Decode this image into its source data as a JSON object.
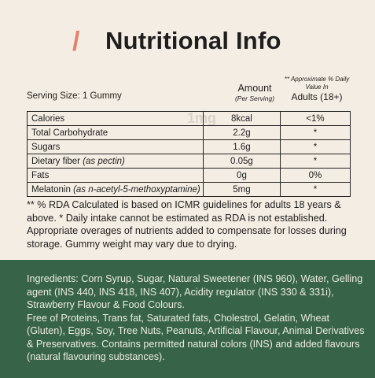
{
  "title": {
    "slash": "/",
    "text": "Nutritional Info"
  },
  "serving_size": "Serving Size: 1 Gummy",
  "header": {
    "amount_main": "Amount",
    "amount_sub": "(Per Serving)",
    "rda_sub": "** Approximate % Daily Value In",
    "rda_main": "Adults (18+)"
  },
  "rows": [
    {
      "name": "Calories",
      "name_extra": "",
      "amount": "8kcal",
      "rda": "<1%"
    },
    {
      "name": "Total Carbohydrate",
      "name_extra": "",
      "amount": "2.2g",
      "rda": "*"
    },
    {
      "name": "Sugars",
      "name_extra": "",
      "amount": "1.6g",
      "rda": "*"
    },
    {
      "name": "Dietary fiber ",
      "name_extra": "(as pectin)",
      "amount": "0.05g",
      "rda": "*"
    },
    {
      "name": "Fats",
      "name_extra": "",
      "amount": "0g",
      "rda": "0%"
    },
    {
      "name": "Melatonin ",
      "name_extra": "(as n-acetyl-5-methoxyptamine)",
      "amount": "5mg",
      "rda": "*"
    }
  ],
  "notes": "** % RDA Calculated is based on ICMR guidelines for adults 18 years & above. * Daily intake cannot be estimated as RDA is not established. Appropriate overages of nutrients added to compensate for losses during storage. Gummy weight may vary due to drying.",
  "ingredients": "Ingredients: Corn Syrup, Sugar, Natural Sweetener (INS 960), Water, Gelling agent (INS 440, INS 418, INS 407), Acidity regulator (INS 330 & 331i), Strawberry Flavour & Food Colours.",
  "free_of": "Free of Proteins, Trans fat, Saturated fats, Cholestrol, Gelatin, Wheat (Gluten), Eggs, Soy, Tree Nuts, Peanuts, Artificial Flavour, Animal Derivatives & Preservatives. Contains permitted natural colors (INS) and added flavours (natural flavouring substances).",
  "watermark": "1mg"
}
